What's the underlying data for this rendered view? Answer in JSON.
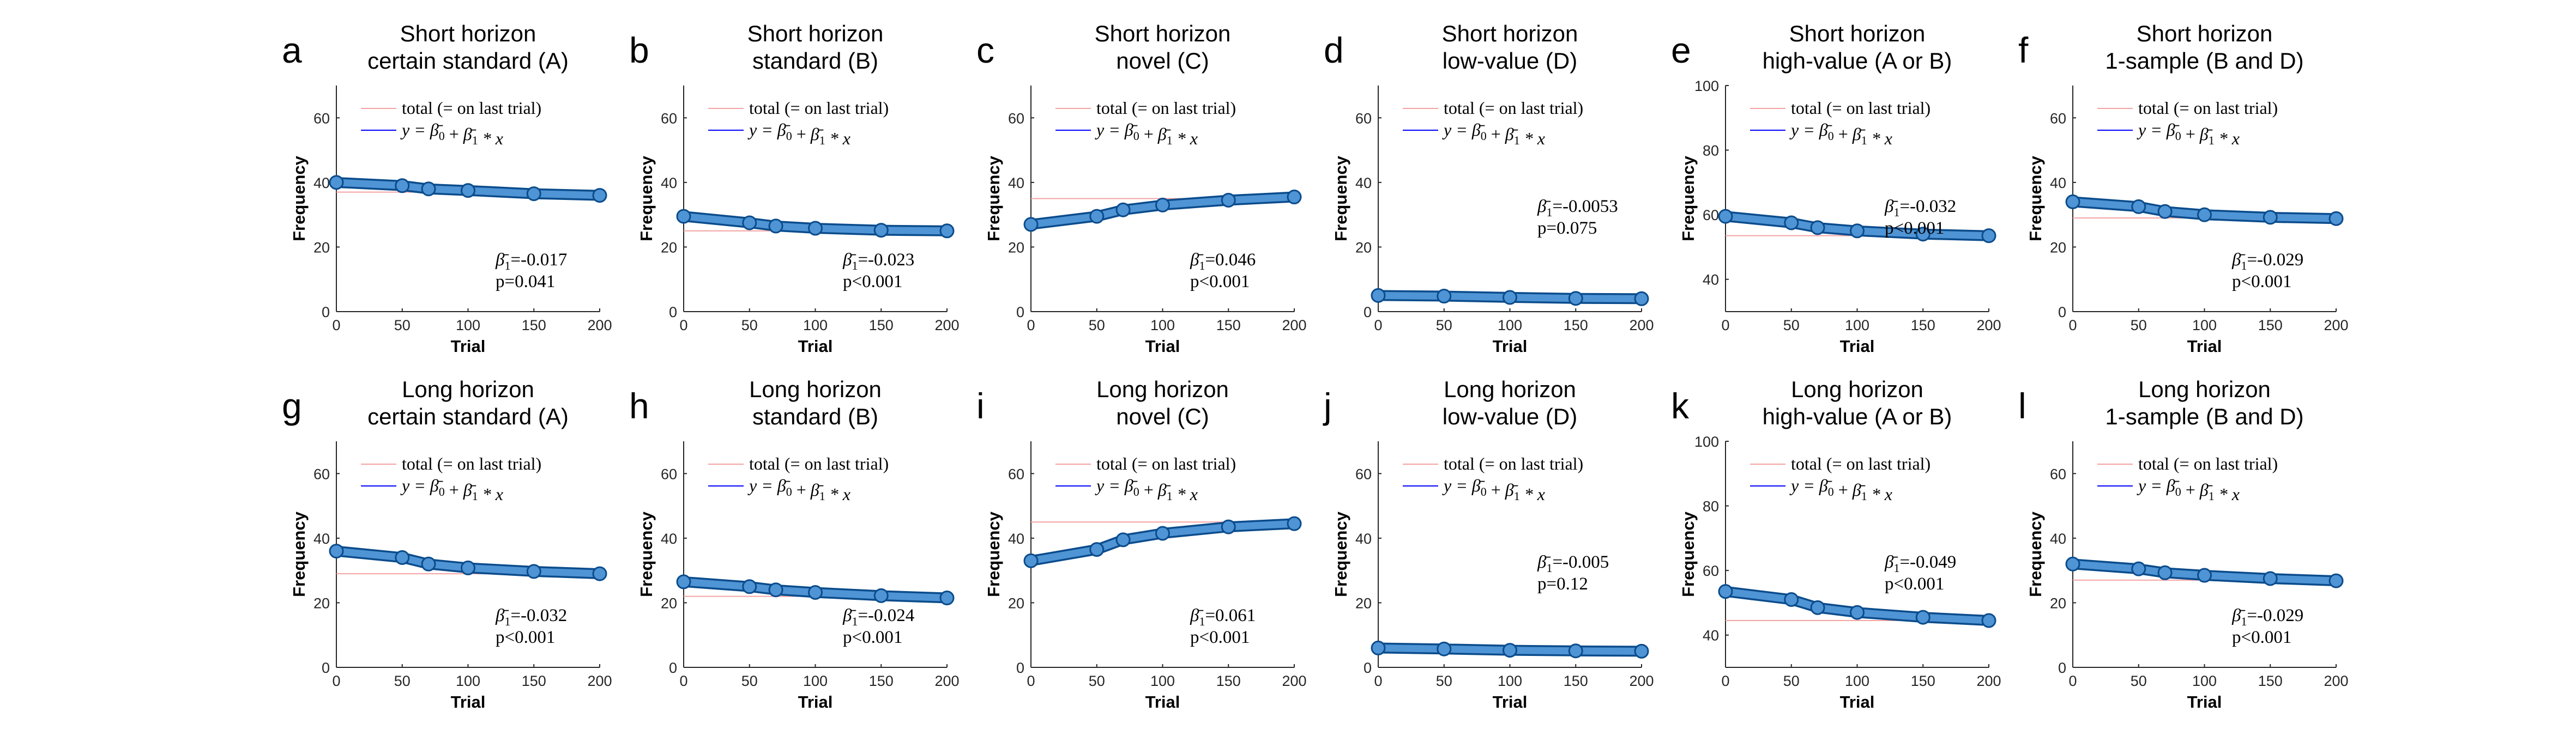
{
  "xlabel": "Trial",
  "ylabel": "Frequency",
  "legend": {
    "total_label": "total (= on last trial)",
    "fit_label": "y = β̄0 + β̄1 * x"
  },
  "colors": {
    "total_line": "#f4a3a3",
    "fit_line": "#0000ff",
    "marker_face": "#4f94d4",
    "marker_edge": "#0b4c8c"
  },
  "chart_data": [
    {
      "type": "line",
      "panel": "a",
      "title_line1": "Short horizon",
      "title_line2": "certain standard (A)",
      "xlim": [
        0,
        200
      ],
      "ylim": [
        0,
        70
      ],
      "xticks": [
        0,
        50,
        100,
        150,
        200
      ],
      "yticks": [
        0,
        20,
        40,
        60
      ],
      "total": 37,
      "beta1": "β̄1=-0.017",
      "pvalue": "p=0.041",
      "annot_pos": "bottom-right",
      "series": [
        {
          "x": [
            0,
            50,
            70,
            100,
            150,
            200
          ],
          "y": [
            40,
            39,
            38,
            37.5,
            36.5,
            36
          ]
        }
      ]
    },
    {
      "type": "line",
      "panel": "b",
      "title_line1": "Short horizon",
      "title_line2": "standard (B)",
      "xlim": [
        0,
        200
      ],
      "ylim": [
        0,
        70
      ],
      "xticks": [
        0,
        50,
        100,
        150,
        200
      ],
      "yticks": [
        0,
        20,
        40,
        60
      ],
      "total": 25,
      "beta1": "β̄1=-0.023",
      "pvalue": "p<0.001",
      "annot_pos": "bottom-right",
      "series": [
        {
          "x": [
            0,
            50,
            70,
            100,
            150,
            200
          ],
          "y": [
            29.5,
            27.5,
            26.5,
            25.8,
            25.2,
            25
          ]
        }
      ]
    },
    {
      "type": "line",
      "panel": "c",
      "title_line1": "Short horizon",
      "title_line2": "novel (C)",
      "xlim": [
        0,
        200
      ],
      "ylim": [
        0,
        70
      ],
      "xticks": [
        0,
        50,
        100,
        150,
        200
      ],
      "yticks": [
        0,
        20,
        40,
        60
      ],
      "total": 35,
      "beta1": "β̄1=0.046",
      "pvalue": "p<0.001",
      "annot_pos": "bottom-right",
      "series": [
        {
          "x": [
            0,
            50,
            70,
            100,
            150,
            200
          ],
          "y": [
            27,
            29.5,
            31.5,
            33,
            34.5,
            35.5
          ]
        }
      ]
    },
    {
      "type": "line",
      "panel": "d",
      "title_line1": "Short horizon",
      "title_line2": "low-value (D)",
      "xlim": [
        0,
        200
      ],
      "ylim": [
        0,
        70
      ],
      "xticks": [
        0,
        50,
        100,
        150,
        200
      ],
      "yticks": [
        0,
        20,
        40,
        60
      ],
      "total": 4,
      "beta1": "β̄1=-0.0053",
      "pvalue": "p=0.075",
      "annot_pos": "middle-right",
      "series": [
        {
          "x": [
            0,
            50,
            100,
            150,
            200
          ],
          "y": [
            5,
            4.8,
            4.4,
            4.1,
            4
          ]
        }
      ]
    },
    {
      "type": "line",
      "panel": "e",
      "title_line1": "Short horizon",
      "title_line2": "high-value (A or B)",
      "xlim": [
        0,
        200
      ],
      "ylim": [
        30,
        100
      ],
      "xticks": [
        0,
        50,
        100,
        150,
        200
      ],
      "yticks": [
        40,
        60,
        80,
        100
      ],
      "total": 53.5,
      "beta1": "β̄1=-0.032",
      "pvalue": "p<0.001",
      "annot_pos": "middle-right",
      "series": [
        {
          "x": [
            0,
            50,
            70,
            100,
            150,
            200
          ],
          "y": [
            59.5,
            57.5,
            56,
            55,
            54,
            53.5
          ]
        }
      ]
    },
    {
      "type": "line",
      "panel": "f",
      "title_line1": "Short horizon",
      "title_line2": "1-sample (B and D)",
      "xlim": [
        0,
        200
      ],
      "ylim": [
        0,
        70
      ],
      "xticks": [
        0,
        50,
        100,
        150,
        200
      ],
      "yticks": [
        0,
        20,
        40,
        60
      ],
      "total": 29,
      "beta1": "β̄1=-0.029",
      "pvalue": "p<0.001",
      "annot_pos": "bottom-right",
      "series": [
        {
          "x": [
            0,
            50,
            70,
            100,
            150,
            200
          ],
          "y": [
            34,
            32.5,
            31,
            30,
            29.2,
            28.8
          ]
        }
      ]
    },
    {
      "type": "line",
      "panel": "g",
      "title_line1": "Long horizon",
      "title_line2": "certain standard (A)",
      "xlim": [
        0,
        200
      ],
      "ylim": [
        0,
        70
      ],
      "xticks": [
        0,
        50,
        100,
        150,
        200
      ],
      "yticks": [
        0,
        20,
        40,
        60
      ],
      "total": 29,
      "beta1": "β̄1=-0.032",
      "pvalue": "p<0.001",
      "annot_pos": "bottom-right",
      "series": [
        {
          "x": [
            0,
            50,
            70,
            100,
            150,
            200
          ],
          "y": [
            36,
            34,
            32,
            30.8,
            29.7,
            29
          ]
        }
      ]
    },
    {
      "type": "line",
      "panel": "h",
      "title_line1": "Long horizon",
      "title_line2": "standard (B)",
      "xlim": [
        0,
        200
      ],
      "ylim": [
        0,
        70
      ],
      "xticks": [
        0,
        50,
        100,
        150,
        200
      ],
      "yticks": [
        0,
        20,
        40,
        60
      ],
      "total": 22,
      "beta1": "β̄1=-0.024",
      "pvalue": "p<0.001",
      "annot_pos": "bottom-right",
      "series": [
        {
          "x": [
            0,
            50,
            70,
            100,
            150,
            200
          ],
          "y": [
            26.5,
            25,
            24,
            23.2,
            22.2,
            21.5
          ]
        }
      ]
    },
    {
      "type": "line",
      "panel": "i",
      "title_line1": "Long horizon",
      "title_line2": "novel (C)",
      "xlim": [
        0,
        200
      ],
      "ylim": [
        0,
        70
      ],
      "xticks": [
        0,
        50,
        100,
        150,
        200
      ],
      "yticks": [
        0,
        20,
        40,
        60
      ],
      "total": 45,
      "beta1": "β̄1=0.061",
      "pvalue": "p<0.001",
      "annot_pos": "bottom-right",
      "series": [
        {
          "x": [
            0,
            50,
            70,
            100,
            150,
            200
          ],
          "y": [
            33,
            36.5,
            39.5,
            41.5,
            43.5,
            44.5
          ]
        }
      ]
    },
    {
      "type": "line",
      "panel": "j",
      "title_line1": "Long horizon",
      "title_line2": "low-value (D)",
      "xlim": [
        0,
        200
      ],
      "ylim": [
        0,
        70
      ],
      "xticks": [
        0,
        50,
        100,
        150,
        200
      ],
      "yticks": [
        0,
        20,
        40,
        60
      ],
      "total": 5,
      "beta1": "β̄1=-0.005",
      "pvalue": "p=0.12",
      "annot_pos": "middle-right",
      "series": [
        {
          "x": [
            0,
            50,
            100,
            150,
            200
          ],
          "y": [
            6,
            5.7,
            5.3,
            5.1,
            5
          ]
        }
      ]
    },
    {
      "type": "line",
      "panel": "k",
      "title_line1": "Long horizon",
      "title_line2": "high-value (A or B)",
      "xlim": [
        0,
        200
      ],
      "ylim": [
        30,
        100
      ],
      "xticks": [
        0,
        50,
        100,
        150,
        200
      ],
      "yticks": [
        40,
        60,
        80,
        100
      ],
      "total": 44.5,
      "beta1": "β̄1=-0.049",
      "pvalue": "p<0.001",
      "annot_pos": "middle-right",
      "series": [
        {
          "x": [
            0,
            50,
            70,
            100,
            150,
            200
          ],
          "y": [
            53.5,
            51,
            48.5,
            47,
            45.5,
            44.5
          ]
        }
      ]
    },
    {
      "type": "line",
      "panel": "l",
      "title_line1": "Long horizon",
      "title_line2": "1-sample (B and D)",
      "xlim": [
        0,
        200
      ],
      "ylim": [
        0,
        70
      ],
      "xticks": [
        0,
        50,
        100,
        150,
        200
      ],
      "yticks": [
        0,
        20,
        40,
        60
      ],
      "total": 27,
      "beta1": "β̄1=-0.029",
      "pvalue": "p<0.001",
      "annot_pos": "bottom-right",
      "series": [
        {
          "x": [
            0,
            50,
            70,
            100,
            150,
            200
          ],
          "y": [
            32,
            30.5,
            29.3,
            28.5,
            27.5,
            26.8
          ]
        }
      ]
    }
  ]
}
